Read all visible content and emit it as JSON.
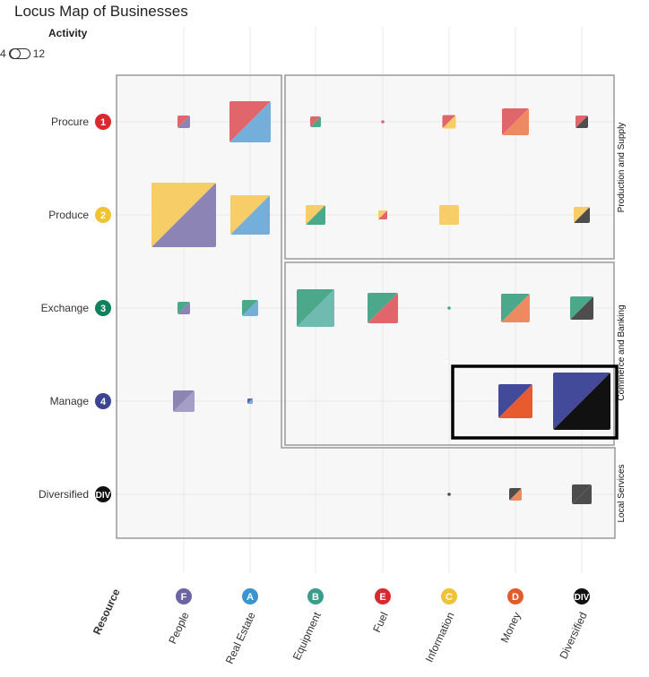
{
  "title": "Locus Map of Businesses",
  "controls": {
    "activity_label": "Activity",
    "toggle_min": "4",
    "toggle_max": "12"
  },
  "colors": {
    "purple": "#8b84b5",
    "blue": "#74aedb",
    "green": "#4ba88a",
    "red": "#e0666b",
    "yellow": "#f6cd67",
    "orange": "#ee8a62",
    "navy": "#434a99",
    "deep_orange": "#e85b2f",
    "black": "#111111",
    "gray": "#4d4d4d"
  },
  "chart_data": {
    "type": "scatter",
    "title": "Locus Map of Businesses",
    "xlabel": "Resource",
    "rows": [
      {
        "label": "Procure",
        "badge": "1",
        "color": "#d9282e"
      },
      {
        "label": "Produce",
        "badge": "2",
        "color": "#f1c232"
      },
      {
        "label": "Exchange",
        "badge": "3",
        "color": "#0f7f5c"
      },
      {
        "label": "Manage",
        "badge": "4",
        "color": "#3c4391"
      },
      {
        "label": "Diversified",
        "badge": "DIV",
        "color": "#111111"
      }
    ],
    "columns": [
      {
        "label": "People",
        "badge": "F",
        "color": "#6d64a3"
      },
      {
        "label": "Real Estate",
        "badge": "A",
        "color": "#3a94cf"
      },
      {
        "label": "Equipment",
        "badge": "B",
        "color": "#3a9d8c"
      },
      {
        "label": "Fuel",
        "badge": "E",
        "color": "#d9282e"
      },
      {
        "label": "Information",
        "badge": "C",
        "color": "#f1c232"
      },
      {
        "label": "Money",
        "badge": "D",
        "color": "#e25c2a"
      },
      {
        "label": "Diversified",
        "badge": "DIV",
        "color": "#111111"
      }
    ],
    "groups": [
      {
        "label": "Production and Supply"
      },
      {
        "label": "Commerce and Banking"
      },
      {
        "label": "Local Services"
      }
    ],
    "points": [
      {
        "row": 0,
        "col": 0,
        "size": 14,
        "c1": "#e0666b",
        "c2": "#8b84b5"
      },
      {
        "row": 0,
        "col": 1,
        "size": 46,
        "c1": "#e0666b",
        "c2": "#74aedb"
      },
      {
        "row": 0,
        "col": 2,
        "size": 12,
        "c1": "#e0666b",
        "c2": "#4ba88a"
      },
      {
        "row": 0,
        "col": 3,
        "size": 3,
        "c1": "#e0666b",
        "c2": "#e0666b"
      },
      {
        "row": 0,
        "col": 4,
        "size": 15,
        "c1": "#e0666b",
        "c2": "#f6cd67"
      },
      {
        "row": 0,
        "col": 5,
        "size": 30,
        "c1": "#e0666b",
        "c2": "#ee8a62"
      },
      {
        "row": 0,
        "col": 6,
        "size": 14,
        "c1": "#e0666b",
        "c2": "#4d4d4d"
      },
      {
        "row": 1,
        "col": 0,
        "size": 72,
        "c1": "#f6cd67",
        "c2": "#8b84b5"
      },
      {
        "row": 1,
        "col": 1,
        "size": 44,
        "c1": "#f6cd67",
        "c2": "#74aedb"
      },
      {
        "row": 1,
        "col": 2,
        "size": 22,
        "c1": "#f6cd67",
        "c2": "#4ba88a"
      },
      {
        "row": 1,
        "col": 3,
        "size": 10,
        "c1": "#f6cd67",
        "c2": "#e0666b"
      },
      {
        "row": 1,
        "col": 4,
        "size": 22,
        "c1": "#f6cd67",
        "c2": "#f6cd67"
      },
      {
        "row": 1,
        "col": 6,
        "size": 18,
        "c1": "#f6cd67",
        "c2": "#4d4d4d"
      },
      {
        "row": 2,
        "col": 0,
        "size": 14,
        "c1": "#4ba88a",
        "c2": "#8b84b5"
      },
      {
        "row": 2,
        "col": 1,
        "size": 18,
        "c1": "#4ba88a",
        "c2": "#74aedb"
      },
      {
        "row": 2,
        "col": 2,
        "size": 42,
        "c1": "#4ba88a",
        "c2": "#6fbbb0"
      },
      {
        "row": 2,
        "col": 3,
        "size": 34,
        "c1": "#4ba88a",
        "c2": "#e0666b"
      },
      {
        "row": 2,
        "col": 4,
        "size": 3,
        "c1": "#4ba88a",
        "c2": "#4ba88a"
      },
      {
        "row": 2,
        "col": 5,
        "size": 32,
        "c1": "#4ba88a",
        "c2": "#ee8a62"
      },
      {
        "row": 2,
        "col": 6,
        "size": 26,
        "c1": "#4ba88a",
        "c2": "#4d4d4d"
      },
      {
        "row": 3,
        "col": 0,
        "size": 24,
        "c1": "#8b84b5",
        "c2": "#a59fc8"
      },
      {
        "row": 3,
        "col": 1,
        "size": 6,
        "c1": "#5a62b3",
        "c2": "#74aedb"
      },
      {
        "row": 3,
        "col": 5,
        "size": 38,
        "c1": "#434a99",
        "c2": "#e85b2f"
      },
      {
        "row": 3,
        "col": 6,
        "size": 64,
        "c1": "#434a99",
        "c2": "#111111"
      },
      {
        "row": 4,
        "col": 4,
        "size": 3,
        "c1": "#4d4d4d",
        "c2": "#4ba88a"
      },
      {
        "row": 4,
        "col": 5,
        "size": 14,
        "c1": "#4d4d4d",
        "c2": "#ee8a62"
      },
      {
        "row": 4,
        "col": 6,
        "size": 22,
        "c1": "#4d4d4d",
        "c2": "#4d4d4d"
      }
    ]
  }
}
